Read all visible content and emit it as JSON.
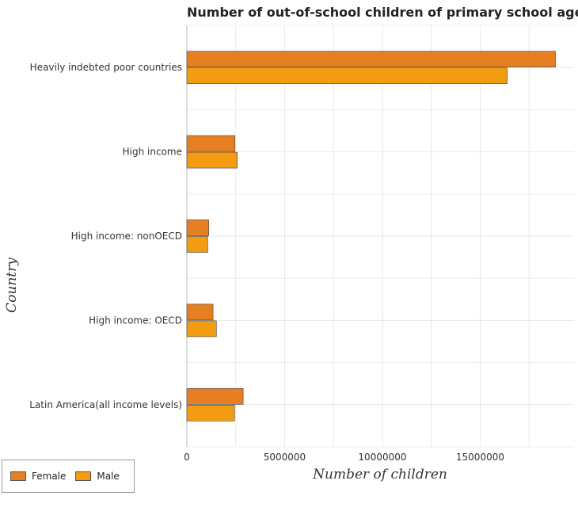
{
  "chart_data": {
    "type": "bar",
    "orientation": "horizontal",
    "title": "Number of out-of-school children of primary school age of",
    "xlabel": "Number of children",
    "ylabel": "Country",
    "categories": [
      "Heavily indebted poor countries",
      "High income",
      "High income: nonOECD",
      "High income: OECD",
      "Latin America(all income levels)"
    ],
    "series": [
      {
        "name": "Female",
        "color": "#E67E22",
        "values": [
          18850000,
          2460000,
          1120000,
          1340000,
          2880000
        ]
      },
      {
        "name": "Male",
        "color": "#F39C12",
        "values": [
          16380000,
          2580000,
          1070000,
          1510000,
          2440000
        ]
      }
    ],
    "xlim": [
      0,
      19800000
    ],
    "xticks": [
      0,
      5000000,
      10000000,
      15000000
    ],
    "xtick_labels": [
      "0",
      "5000000",
      "10000000",
      "15000000"
    ],
    "grid": true,
    "legend_position": "bottom-left"
  },
  "legend": {
    "female_label": "Female",
    "male_label": "Male",
    "female_color": "#E67E22",
    "male_color": "#F39C12"
  }
}
